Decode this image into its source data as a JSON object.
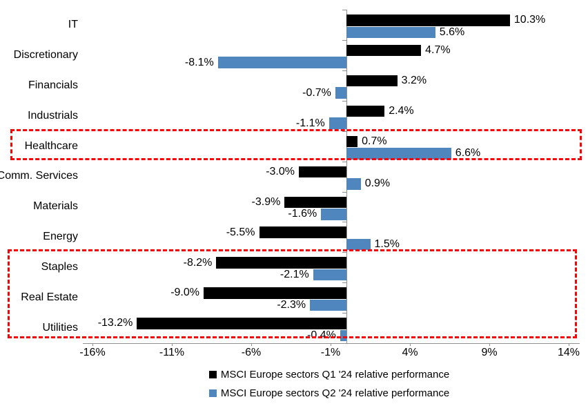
{
  "chart_data": {
    "type": "bar",
    "orientation": "horizontal",
    "title": "",
    "xlabel": "",
    "ylabel": "",
    "grid": false,
    "legend_position": "bottom",
    "categories": [
      "IT",
      "Discretionary",
      "Financials",
      "Industrials",
      "Healthcare",
      "Comm. Services",
      "Materials",
      "Energy",
      "Staples",
      "Real Estate",
      "Utilities"
    ],
    "series": [
      {
        "key": "q1",
        "name": "MSCI Europe sectors Q1 '24 relative performance",
        "color": "#000000",
        "values": [
          10.3,
          4.7,
          3.2,
          2.4,
          0.7,
          -3.0,
          -3.9,
          -5.5,
          -8.2,
          -9.0,
          -13.2
        ],
        "labels": [
          "10.3%",
          "4.7%",
          "3.2%",
          "2.4%",
          "0.7%",
          "-3.0%",
          "-3.9%",
          "-5.5%",
          "-8.2%",
          "-9.0%",
          "-13.2%"
        ]
      },
      {
        "key": "q2",
        "name": "MSCI Europe sectors Q2 '24 relative performance",
        "color": "#4f86be",
        "values": [
          5.6,
          -8.1,
          -0.7,
          -1.1,
          6.6,
          0.9,
          -1.6,
          1.5,
          -2.1,
          -2.3,
          -0.4
        ],
        "labels": [
          "5.6%",
          "-8.1%",
          "-0.7%",
          "-1.1%",
          "6.6%",
          "0.9%",
          "-1.6%",
          "1.5%",
          "-2.1%",
          "-2.3%",
          "-0.4%"
        ]
      }
    ],
    "x_ticks": [
      {
        "value": -16,
        "label": "-16%"
      },
      {
        "value": -11,
        "label": "-11%"
      },
      {
        "value": -6,
        "label": "-6%"
      },
      {
        "value": -1,
        "label": "-1%"
      },
      {
        "value": 4,
        "label": "4%"
      },
      {
        "value": 9,
        "label": "9%"
      },
      {
        "value": 14,
        "label": "14%"
      }
    ],
    "xlim": [
      -16.6,
      14.8
    ],
    "highlights": [
      {
        "name": "healthcare-highlight",
        "categories": [
          "Healthcare"
        ],
        "color": "#fb0007"
      },
      {
        "name": "staples-realestate-utilities-highlight",
        "categories": [
          "Staples",
          "Real Estate",
          "Utilities"
        ],
        "color": "#fb0007"
      }
    ]
  },
  "colors": {
    "axis": "#8f8f8f",
    "background": "#ffffff",
    "text": "#000000"
  }
}
